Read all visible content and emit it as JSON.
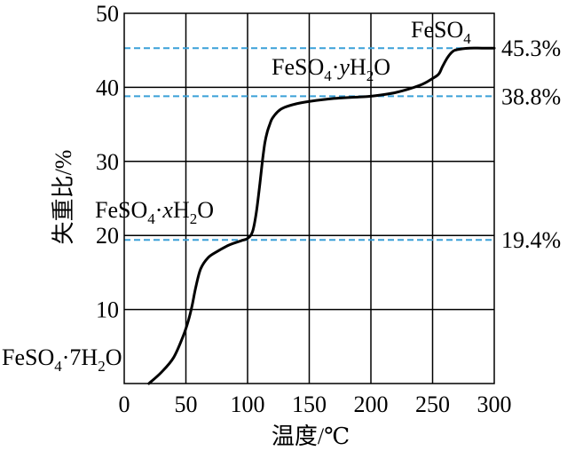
{
  "chart_data": {
    "type": "line",
    "title": "",
    "xlabel": "温度/℃",
    "ylabel": "失重比/%",
    "xlim": [
      0,
      300
    ],
    "ylim": [
      0,
      50
    ],
    "xticks": [
      0,
      50,
      100,
      150,
      200,
      250,
      300
    ],
    "yticks": [
      10,
      20,
      30,
      40,
      50
    ],
    "grid": true,
    "series": [
      {
        "x": [
          20,
          30,
          40,
          48,
          52,
          55,
          58,
          62,
          68,
          75,
          85,
          95,
          100,
          104,
          107,
          110,
          112,
          114,
          116,
          118,
          120,
          125,
          130,
          140,
          150,
          170,
          190,
          200,
          220,
          240,
          250,
          255,
          258,
          262,
          266,
          270,
          280,
          290,
          300
        ],
        "y": [
          0,
          1.5,
          3.5,
          6.5,
          8.5,
          10.5,
          13,
          15.5,
          17,
          17.8,
          18.7,
          19.3,
          19.6,
          20.5,
          23,
          27,
          30,
          32.5,
          34,
          35,
          35.8,
          36.8,
          37.3,
          37.8,
          38.1,
          38.5,
          38.7,
          38.8,
          39.3,
          40.3,
          41.2,
          41.8,
          42.8,
          44,
          44.8,
          45.1,
          45.3,
          45.3,
          45.3
        ],
        "color": "#000000"
      }
    ],
    "reference_lines": [
      {
        "y": 45.3,
        "label": "45.3%",
        "color": "#3aa0d8"
      },
      {
        "y": 38.8,
        "label": "38.8%",
        "color": "#3aa0d8"
      },
      {
        "y": 19.4,
        "label": "19.4%",
        "color": "#3aa0d8"
      }
    ],
    "annotations": [
      {
        "id": "fe-7h2o",
        "formula": "FeSO",
        "sub": "4",
        "rest": "·7H",
        "sub2": "2",
        "tail": "O"
      },
      {
        "id": "fe-xh2o",
        "formula": "FeSO",
        "sub": "4",
        "rest": "·",
        "italic": "x",
        "rest2": "H",
        "sub2": "2",
        "tail": "O"
      },
      {
        "id": "fe-yh2o",
        "formula": "FeSO",
        "sub": "4",
        "rest": "·",
        "italic": "y",
        "rest2": "H",
        "sub2": "2",
        "tail": "O"
      },
      {
        "id": "feso4",
        "formula": "FeSO",
        "sub": "4"
      }
    ]
  }
}
